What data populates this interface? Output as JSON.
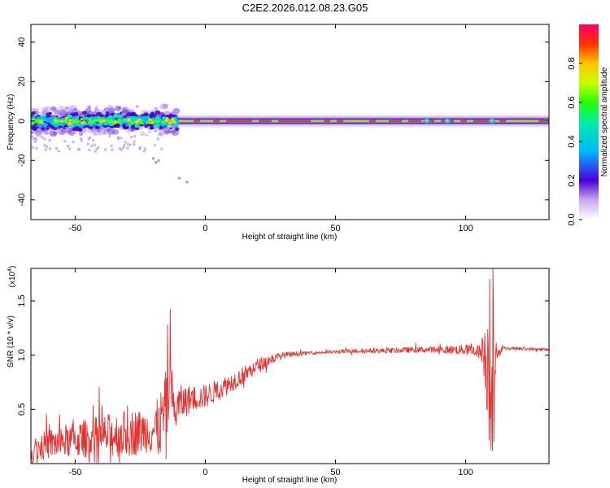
{
  "title": "C2E2.2026.012.08.23.G05",
  "chart_data": [
    {
      "type": "heatmap",
      "xlabel": "Height of straight line (km)",
      "ylabel": "Frequency (Hz)",
      "xlim": [
        -67,
        132
      ],
      "ylim": [
        -50,
        49
      ],
      "xticks": [
        -50,
        0,
        50,
        100
      ],
      "yticks": [
        -40,
        -20,
        0,
        20,
        40
      ],
      "colorbar": {
        "label": "Normalized spectral amplitude",
        "range": [
          0,
          1
        ],
        "ticks": [
          0.0,
          0.2,
          0.4,
          0.6,
          0.8
        ],
        "tick_labels": [
          "0.0",
          "0.2",
          "0.4",
          "0.6",
          "0.8"
        ]
      },
      "ridge": {
        "frequency": 0,
        "noisy_region_x": [
          -67,
          -12
        ],
        "noisy_region_halfwidth_hz": 5,
        "smooth_region_x": [
          -12,
          132
        ],
        "smooth_region_halfwidth_hz": 2.5
      },
      "outliers": [
        {
          "x": -20,
          "y": -19
        },
        {
          "x": -19,
          "y": -21
        },
        {
          "x": -18,
          "y": -20
        },
        {
          "x": -10,
          "y": -29
        },
        {
          "x": -7,
          "y": -31
        }
      ]
    },
    {
      "type": "line",
      "xlabel": "Height of straight line (km)",
      "ylabel": "SNR (10 * v/v)",
      "multiplier_label": "(x10",
      "multiplier_exp": "4",
      "xlim": [
        -67,
        132
      ],
      "ylim": [
        0,
        1.8
      ],
      "xticks": [
        -50,
        0,
        50,
        100
      ],
      "yticks": [
        0.5,
        1.0,
        1.5
      ],
      "ytick_labels": [
        "0.5",
        "1.0",
        "1.5"
      ],
      "series_color": "#e8312d",
      "envelope": {
        "x": [
          -67,
          -60,
          -50,
          -40,
          -30,
          -22,
          -18,
          -16,
          -14,
          -13,
          -12,
          -10,
          -5,
          0,
          5,
          10,
          15,
          20,
          25,
          30,
          40,
          50,
          60,
          70,
          80,
          90,
          100,
          105,
          107,
          108,
          109,
          110,
          111,
          112,
          115,
          120,
          132
        ],
        "y": [
          0.12,
          0.18,
          0.22,
          0.25,
          0.28,
          0.3,
          0.32,
          0.45,
          0.6,
          0.7,
          0.45,
          0.55,
          0.6,
          0.62,
          0.68,
          0.75,
          0.82,
          0.9,
          0.96,
          1.0,
          1.02,
          1.03,
          1.04,
          1.04,
          1.05,
          1.05,
          1.05,
          1.04,
          1.0,
          0.95,
          0.9,
          0.85,
          0.9,
          1.02,
          1.06,
          1.06,
          1.05
        ]
      },
      "amplitude": {
        "x": [
          -67,
          -30,
          -22,
          -15,
          -12,
          -5,
          5,
          20,
          30,
          40,
          90,
          105,
          107,
          108,
          109,
          110,
          111,
          112,
          115,
          132
        ],
        "a": [
          0.12,
          0.22,
          0.2,
          0.35,
          0.2,
          0.12,
          0.1,
          0.07,
          0.03,
          0.015,
          0.03,
          0.06,
          0.2,
          0.45,
          0.75,
          0.8,
          0.4,
          0.05,
          0.015,
          0.015
        ]
      },
      "peaks": [
        {
          "x": -13.4,
          "y": 1.42
        },
        {
          "x": -14.5,
          "y": 1.28
        },
        {
          "x": 109.2,
          "y": 1.7
        },
        {
          "x": 110.4,
          "y": 1.8
        },
        {
          "x": 109.8,
          "y": 0.13
        },
        {
          "x": 110.9,
          "y": 0.2
        }
      ]
    }
  ]
}
